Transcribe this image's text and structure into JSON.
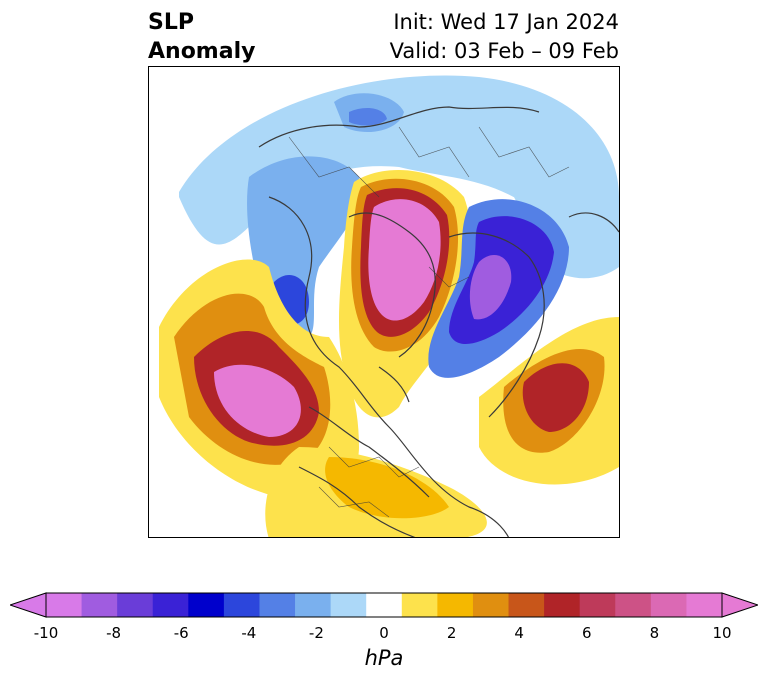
{
  "title": {
    "variable": "SLP",
    "subtitle": "Anomaly",
    "init": "Init: Wed 17 Jan 2024",
    "valid": "Valid: 03 Feb – 09 Feb"
  },
  "colorbar": {
    "unit": "hPa",
    "tick_labels": [
      "-10",
      "-8",
      "-6",
      "-4",
      "-2",
      "0",
      "2",
      "4",
      "6",
      "8",
      "10"
    ],
    "colors": [
      "#d87ae8",
      "#a05ce0",
      "#6a3dd8",
      "#3a22d6",
      "#0000cc",
      "#2c46dc",
      "#5480e6",
      "#7ab0ee",
      "#acd8f8",
      "#ffffff",
      "#fde24c",
      "#f5b800",
      "#e08f10",
      "#c8561a",
      "#b02428",
      "#be3a5a",
      "#cd5286",
      "#db69b4",
      "#e57ad4"
    ],
    "extend_low_color": "#d87ae8",
    "extend_high_color": "#e57ad4"
  }
}
